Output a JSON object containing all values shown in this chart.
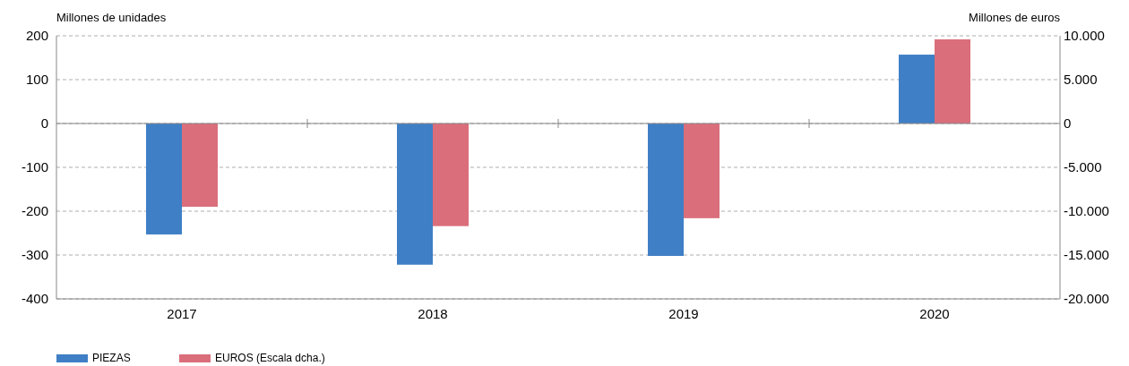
{
  "chart_data": {
    "type": "bar",
    "ylabel": "Millones de unidades",
    "y2label": "Millones de euros",
    "categories": [
      "2017",
      "2018",
      "2019",
      "2020"
    ],
    "series": [
      {
        "name": "PIEZAS",
        "color": "#3f7fc5",
        "values": [
          -253,
          -322,
          -302,
          157
        ]
      },
      {
        "name": "EUROS (Escala dcha.)",
        "color": "#da6e7b",
        "values": [
          -9500,
          -11700,
          -10800,
          9600
        ],
        "axis": "y2"
      }
    ],
    "ylim": [
      -400,
      200
    ],
    "yticks": [
      -400,
      -300,
      -200,
      -100,
      0,
      100,
      200
    ],
    "y2lim": [
      -20000,
      10000
    ],
    "y2ticks": [
      {
        "value": -20000,
        "label": "-20.000"
      },
      {
        "value": -15000,
        "label": "-15.000"
      },
      {
        "value": -10000,
        "label": "-10.000"
      },
      {
        "value": -5000,
        "label": "-5.000"
      },
      0,
      {
        "value": 5000,
        "label": "5.000"
      },
      {
        "value": 10000,
        "label": "10.000"
      }
    ],
    "grid": "y",
    "legend": "bottom left"
  }
}
